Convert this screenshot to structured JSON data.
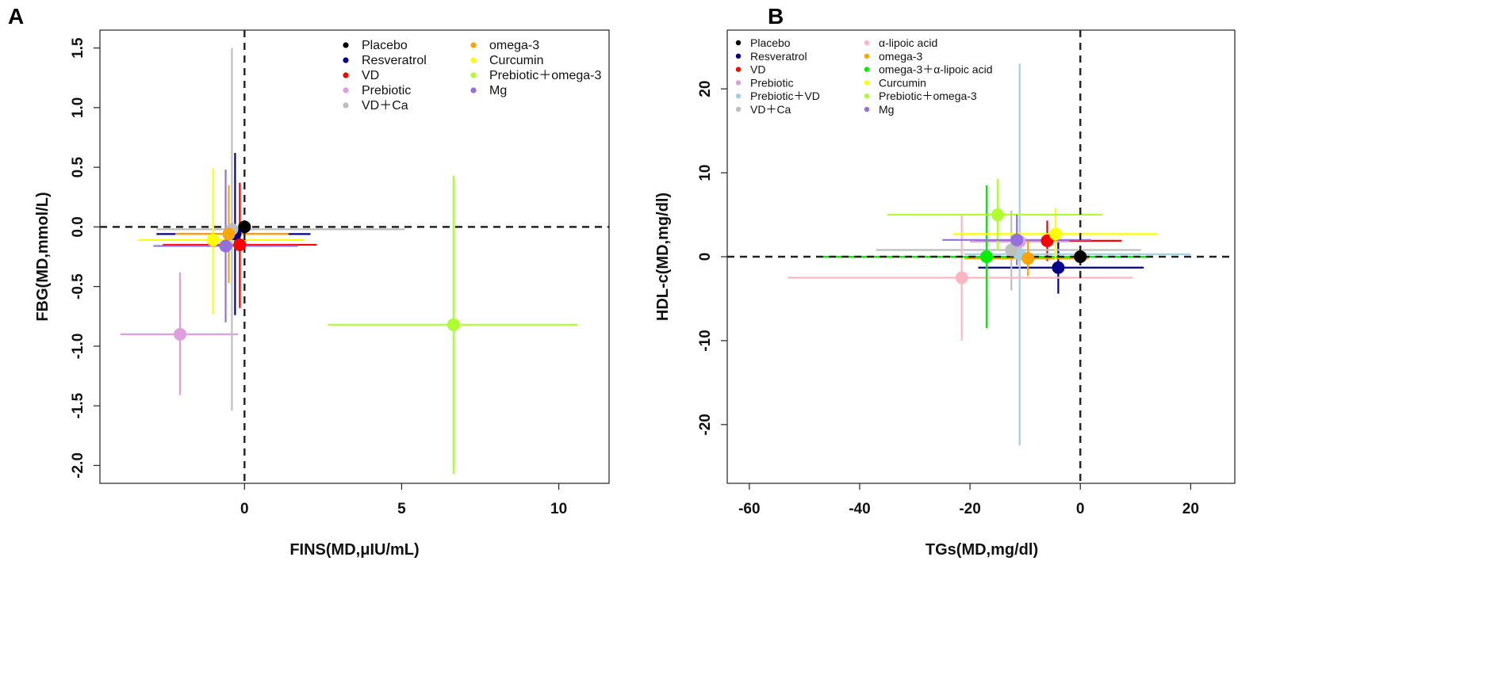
{
  "chart_data": [
    {
      "type": "scatter",
      "panel_label": "A",
      "title": "",
      "xlabel": "FINS(MD,μIU/mL)",
      "ylabel": "FBG(MD,mmol/L)",
      "xlim": [
        -4.6,
        11.6
      ],
      "ylim": [
        -2.15,
        1.65
      ],
      "xticks": [
        0,
        5,
        10
      ],
      "yticks": [
        -2.0,
        -1.5,
        -1.0,
        -0.5,
        0.0,
        0.5,
        1.0,
        1.5
      ],
      "ytick_labels": [
        "-2.0",
        "-1.5",
        "-1.0",
        "-0.5",
        "0.0",
        "0.5",
        "1.0",
        "1.5"
      ],
      "ref_x": 0,
      "ref_y": 0,
      "grid": false,
      "legend_placement": "top-right",
      "series": [
        {
          "name": "Placebo",
          "color": "#000000",
          "x": 0.0,
          "y": 0.0,
          "x_ci": [
            0.0,
            0.0
          ],
          "y_ci": [
            0.0,
            0.0
          ]
        },
        {
          "name": "Resveratrol",
          "color": "#00008b",
          "x": -0.3,
          "y": -0.06,
          "x_ci": [
            -2.8,
            2.1
          ],
          "y_ci": [
            -0.74,
            0.62
          ]
        },
        {
          "name": "VD",
          "color": "#ff0000",
          "x": -0.15,
          "y": -0.15,
          "x_ci": [
            -2.6,
            2.3
          ],
          "y_ci": [
            -0.68,
            0.37
          ]
        },
        {
          "name": "Prebiotic",
          "color": "#dda0dd",
          "x": -2.05,
          "y": -0.9,
          "x_ci": [
            -3.95,
            -0.2
          ],
          "y_ci": [
            -1.41,
            -0.38
          ]
        },
        {
          "name": "VD＋Ca",
          "color": "#bebebe",
          "x": -0.4,
          "y": -0.02,
          "x_ci": [
            -2.8,
            5.1
          ],
          "y_ci": [
            -1.54,
            1.5
          ]
        },
        {
          "name": "omega-3",
          "color": "#ffa500",
          "x": -0.5,
          "y": -0.06,
          "x_ci": [
            -2.2,
            1.4
          ],
          "y_ci": [
            -0.47,
            0.35
          ]
        },
        {
          "name": "Curcumin",
          "color": "#ffff00",
          "x": -1.0,
          "y": -0.11,
          "x_ci": [
            -3.4,
            1.9
          ],
          "y_ci": [
            -0.73,
            0.49
          ]
        },
        {
          "name": "Prebiotic＋omega-3",
          "color": "#adff2f",
          "x": 6.65,
          "y": -0.82,
          "x_ci": [
            2.65,
            10.6
          ],
          "y_ci": [
            -2.07,
            0.43
          ]
        },
        {
          "name": "Mg",
          "color": "#9370db",
          "x": -0.6,
          "y": -0.16,
          "x_ci": [
            -2.9,
            1.7
          ],
          "y_ci": [
            -0.8,
            0.48
          ]
        }
      ],
      "legend": [
        "Placebo",
        "Resveratrol",
        "VD",
        "Prebiotic",
        "VD＋Ca",
        "omega-3",
        "Curcumin",
        "Prebiotic＋omega-3",
        "Mg"
      ]
    },
    {
      "type": "scatter",
      "panel_label": "B",
      "title": "",
      "xlabel": "TGs(MD,mg/dl)",
      "ylabel": "HDL-c(MD,mg/dl)",
      "xlim": [
        -64,
        28
      ],
      "ylim": [
        -27,
        27
      ],
      "xticks": [
        -60,
        -40,
        -20,
        0,
        20
      ],
      "yticks": [
        -20,
        -10,
        0,
        10,
        20
      ],
      "ref_x": 0,
      "ref_y": 0,
      "grid": false,
      "legend_placement": "top-left",
      "series": [
        {
          "name": "Placebo",
          "color": "#000000",
          "x": 0.0,
          "y": 0.0,
          "x_ci": [
            0.0,
            0.0
          ],
          "y_ci": [
            0.0,
            0.0
          ]
        },
        {
          "name": "Resveratrol",
          "color": "#00008b",
          "x": -4.0,
          "y": -1.3,
          "x_ci": [
            -18.5,
            11.5
          ],
          "y_ci": [
            -4.4,
            1.8
          ]
        },
        {
          "name": "VD",
          "color": "#ff0000",
          "x": -6.0,
          "y": 1.9,
          "x_ci": [
            -19.0,
            7.5
          ],
          "y_ci": [
            -0.5,
            4.3
          ]
        },
        {
          "name": "Prebiotic",
          "color": "#dda0dd",
          "x": -11.0,
          "y": 1.8,
          "x_ci": [
            -20.0,
            -2.0
          ],
          "y_ci": [
            -0.5,
            4.5
          ]
        },
        {
          "name": "Prebiotic＋VD",
          "color": "#a6cee3",
          "x": -11.0,
          "y": 0.3,
          "x_ci": [
            -21.0,
            20.0
          ],
          "y_ci": [
            -22.5,
            23.0
          ]
        },
        {
          "name": "VD＋Ca",
          "color": "#bebebe",
          "x": -12.5,
          "y": 0.8,
          "x_ci": [
            -37.0,
            11.0
          ],
          "y_ci": [
            -4.0,
            5.5
          ]
        },
        {
          "name": "α-lipoic acid",
          "color": "#ffb6c1",
          "x": -21.5,
          "y": -2.5,
          "x_ci": [
            -53.0,
            9.5
          ],
          "y_ci": [
            -10.0,
            5.0
          ]
        },
        {
          "name": "omega-3",
          "color": "#ffa500",
          "x": -9.5,
          "y": -0.2,
          "x_ci": [
            -21.0,
            1.5
          ],
          "y_ci": [
            -2.3,
            1.9
          ]
        },
        {
          "name": "omega-3＋α-lipoic acid",
          "color": "#00ee00",
          "x": -17.0,
          "y": 0.0,
          "x_ci": [
            -47.0,
            13.0
          ],
          "y_ci": [
            -8.5,
            8.5
          ]
        },
        {
          "name": "Curcumin",
          "color": "#ffff00",
          "x": -4.5,
          "y": 2.7,
          "x_ci": [
            -23.0,
            14.0
          ],
          "y_ci": [
            -0.3,
            5.8
          ]
        },
        {
          "name": "Prebiotic＋omega-3",
          "color": "#adff2f",
          "x": -15.0,
          "y": 5.0,
          "x_ci": [
            -35.0,
            4.0
          ],
          "y_ci": [
            0.8,
            9.3
          ]
        },
        {
          "name": "Mg",
          "color": "#9370db",
          "x": -11.5,
          "y": 2.0,
          "x_ci": [
            -25.0,
            2.0
          ],
          "y_ci": [
            -1.0,
            5.0
          ]
        }
      ],
      "legend": [
        "Placebo",
        "Resveratrol",
        "VD",
        "Prebiotic",
        "Prebiotic＋VD",
        "VD＋Ca",
        "α-lipoic acid",
        "omega-3",
        "omega-3＋α-lipoic acid",
        "Curcumin",
        "Prebiotic＋omega-3",
        "Mg"
      ]
    }
  ]
}
